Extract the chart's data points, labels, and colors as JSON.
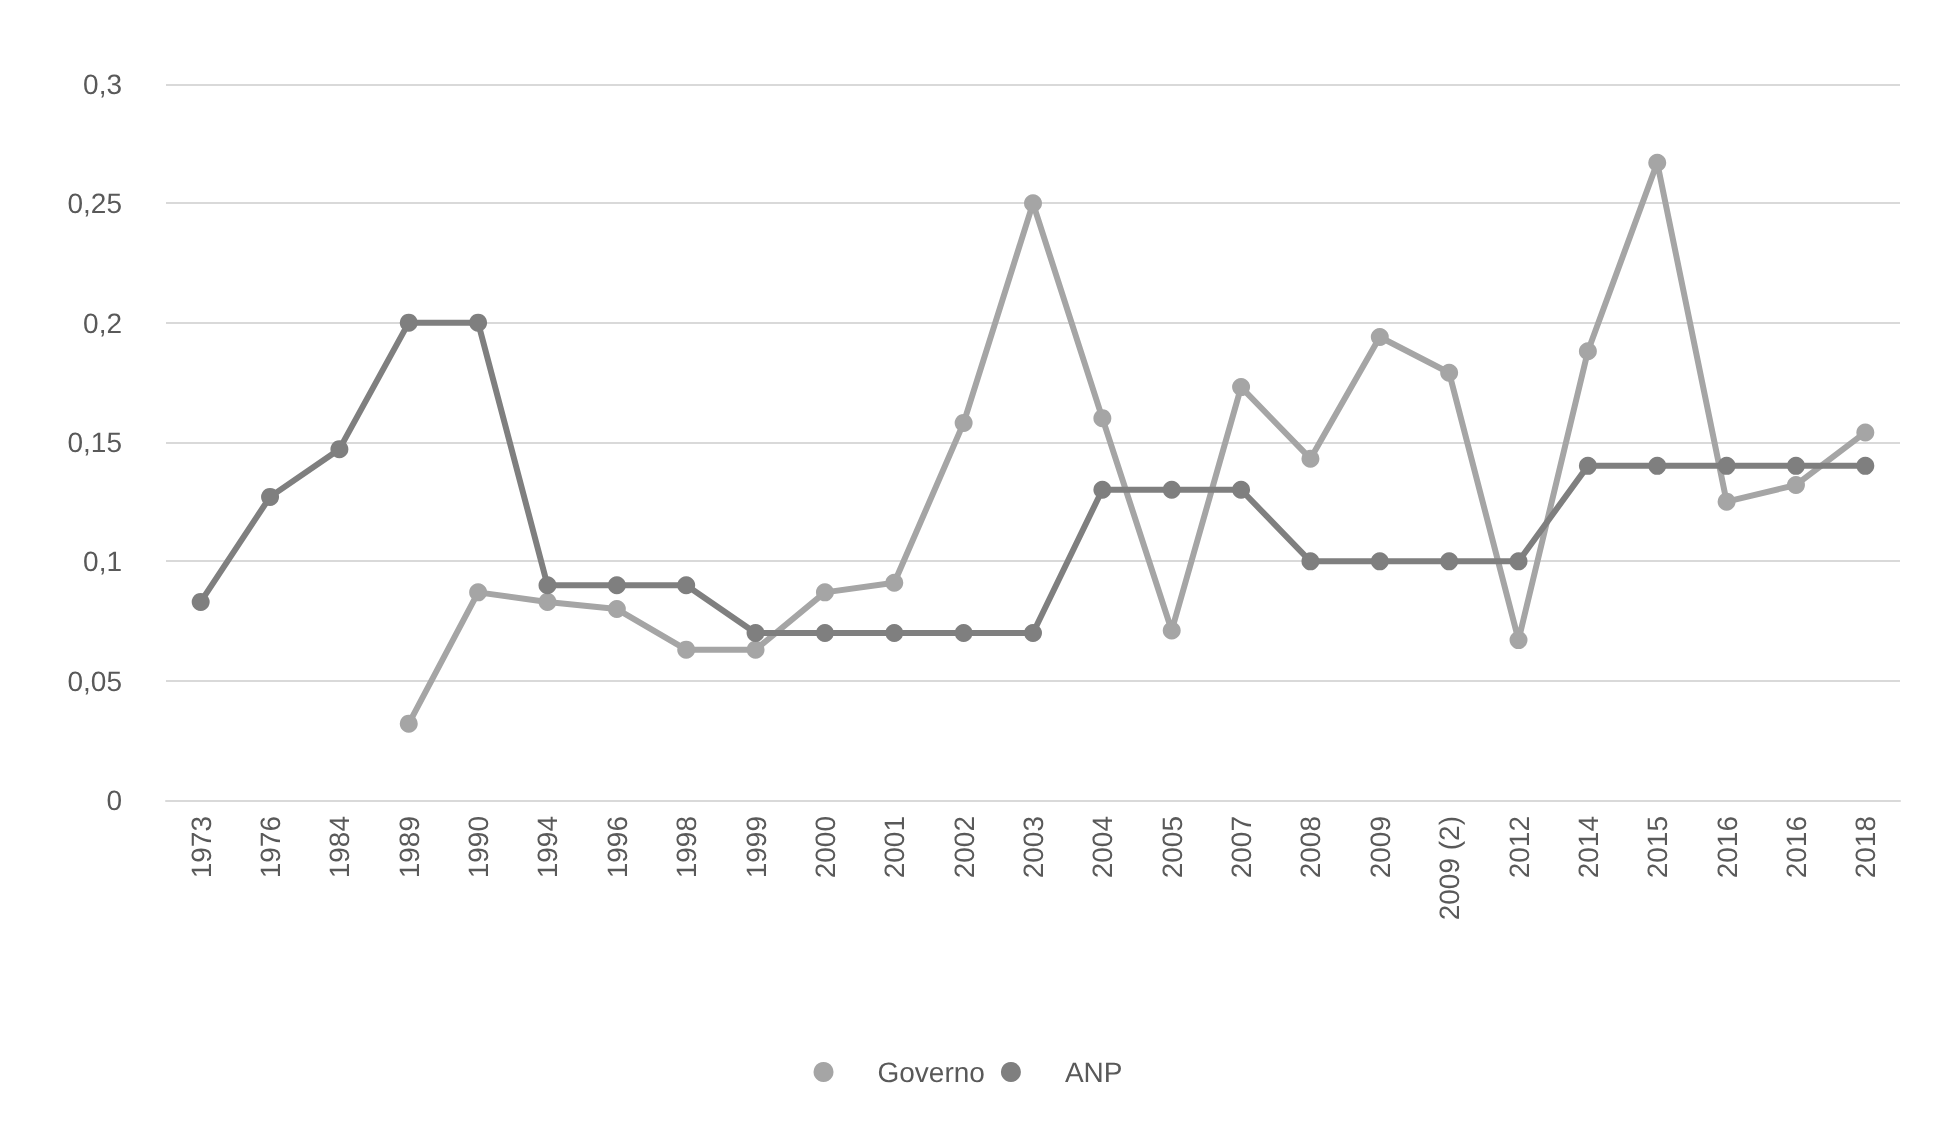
{
  "chart_data": {
    "type": "line",
    "categories": [
      "1973",
      "1976",
      "1984",
      "1989",
      "1990",
      "1994",
      "1996",
      "1998",
      "1999",
      "2000",
      "2001",
      "2002",
      "2003",
      "2004",
      "2005",
      "2007",
      "2008",
      "2009",
      "2009 (2)",
      "2012",
      "2014",
      "2015",
      "2016",
      "2016",
      "2018"
    ],
    "series": [
      {
        "name": "Governo",
        "color": "#a5a5a5",
        "values": [
          null,
          null,
          null,
          0.032,
          0.087,
          0.083,
          0.08,
          0.063,
          0.063,
          0.087,
          0.091,
          0.158,
          0.25,
          0.16,
          0.071,
          0.173,
          0.143,
          0.194,
          0.179,
          0.067,
          0.188,
          0.267,
          0.125,
          0.132,
          0.154
        ]
      },
      {
        "name": "ANP",
        "color": "#7f7f7f",
        "values": [
          0.083,
          0.127,
          0.147,
          0.2,
          0.2,
          0.09,
          0.09,
          0.09,
          0.07,
          0.07,
          0.07,
          0.07,
          0.07,
          0.13,
          0.13,
          0.13,
          0.1,
          0.1,
          0.1,
          0.1,
          0.14,
          0.14,
          0.14,
          0.14,
          0.14
        ]
      }
    ],
    "ylim": [
      0,
      0.3
    ],
    "yticks": [
      {
        "value": 0,
        "label": "0"
      },
      {
        "value": 0.05,
        "label": "0,05"
      },
      {
        "value": 0.1,
        "label": "0,1"
      },
      {
        "value": 0.15,
        "label": "0,15"
      },
      {
        "value": 0.2,
        "label": "0,2"
      },
      {
        "value": 0.25,
        "label": "0,25"
      },
      {
        "value": 0.3,
        "label": "0,3"
      }
    ],
    "grid": "y",
    "legend": "bottom",
    "marker": "circle",
    "line_style": "solid"
  }
}
